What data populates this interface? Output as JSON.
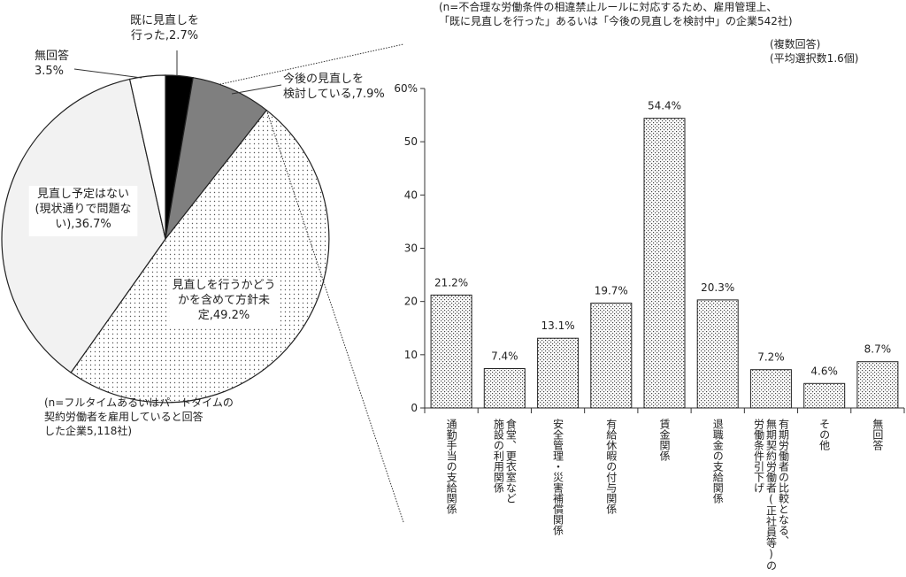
{
  "colors": {
    "black_slice": "#000000",
    "gray_slice": "#7f7f7f",
    "light_slice": "#f2f2f2",
    "white_slice": "#ffffff",
    "outline": "#222222",
    "grid": "#bfbfbf"
  },
  "pie_note": "(n=フルタイムあるいはパートタイムの\n契約労働者を雇用していると回答\nした企業5,118社)",
  "bar_note_top": "(n=不合理な労働条件の相違禁止ルールに対応するため、雇用管理上、\n「既に見直しを行った」あるいは「今後の見直しを検討中」の企業542社)",
  "bar_note_right": "(複数回答)\n(平均選択数1.6個)",
  "chart_data": [
    {
      "type": "pie",
      "slices": [
        {
          "label": "既に見直しを行った",
          "label_lines": [
            "既に見直しを",
            "行った,2.7%"
          ],
          "value": 2.7,
          "fill": "black"
        },
        {
          "label": "今後の見直しを検討している",
          "label_lines": [
            "今後の見直しを",
            "検討している,7.9%"
          ],
          "value": 7.9,
          "fill": "gray"
        },
        {
          "label": "見直しを行うかどうかを含めて方針未定",
          "label_lines": [
            "見直しを行うかどう",
            "かを含めて方針未",
            "定,49.2%"
          ],
          "value": 49.2,
          "fill": "dotted"
        },
        {
          "label": "見直し予定はない(現状通りで問題ない)",
          "label_lines": [
            "見直し予定はない",
            "(現状通りで問題な",
            "い),36.7%"
          ],
          "value": 36.7,
          "fill": "light"
        },
        {
          "label": "無回答",
          "label_lines": [
            "無回答",
            "3.5%"
          ],
          "value": 3.5,
          "fill": "white"
        }
      ]
    },
    {
      "type": "bar",
      "categories": [
        [
          "通勤手当の支給関係"
        ],
        [
          "食堂、更衣室など",
          "施設の利用関係"
        ],
        [
          "安全管理・災害補償関係"
        ],
        [
          "有給休暇の付与関係"
        ],
        [
          "賃金関係"
        ],
        [
          "退職金の支給関係"
        ],
        [
          "有期労働者の比較となる、",
          "無期契約労働者(正社員等)の",
          "労働条件引下げ"
        ],
        [
          "その他"
        ],
        [
          "無回答"
        ]
      ],
      "values": [
        21.2,
        7.4,
        13.1,
        19.7,
        54.4,
        20.3,
        7.2,
        4.6,
        8.7
      ],
      "value_labels": [
        "21.2%",
        "7.4%",
        "13.1%",
        "19.7%",
        "54.4%",
        "20.3%",
        "7.2%",
        "4.6%",
        "8.7%"
      ],
      "ylim": [
        0,
        60
      ],
      "yticks": [
        "0",
        "10",
        "20",
        "30",
        "40",
        "50",
        "60%"
      ],
      "grid": false
    }
  ]
}
